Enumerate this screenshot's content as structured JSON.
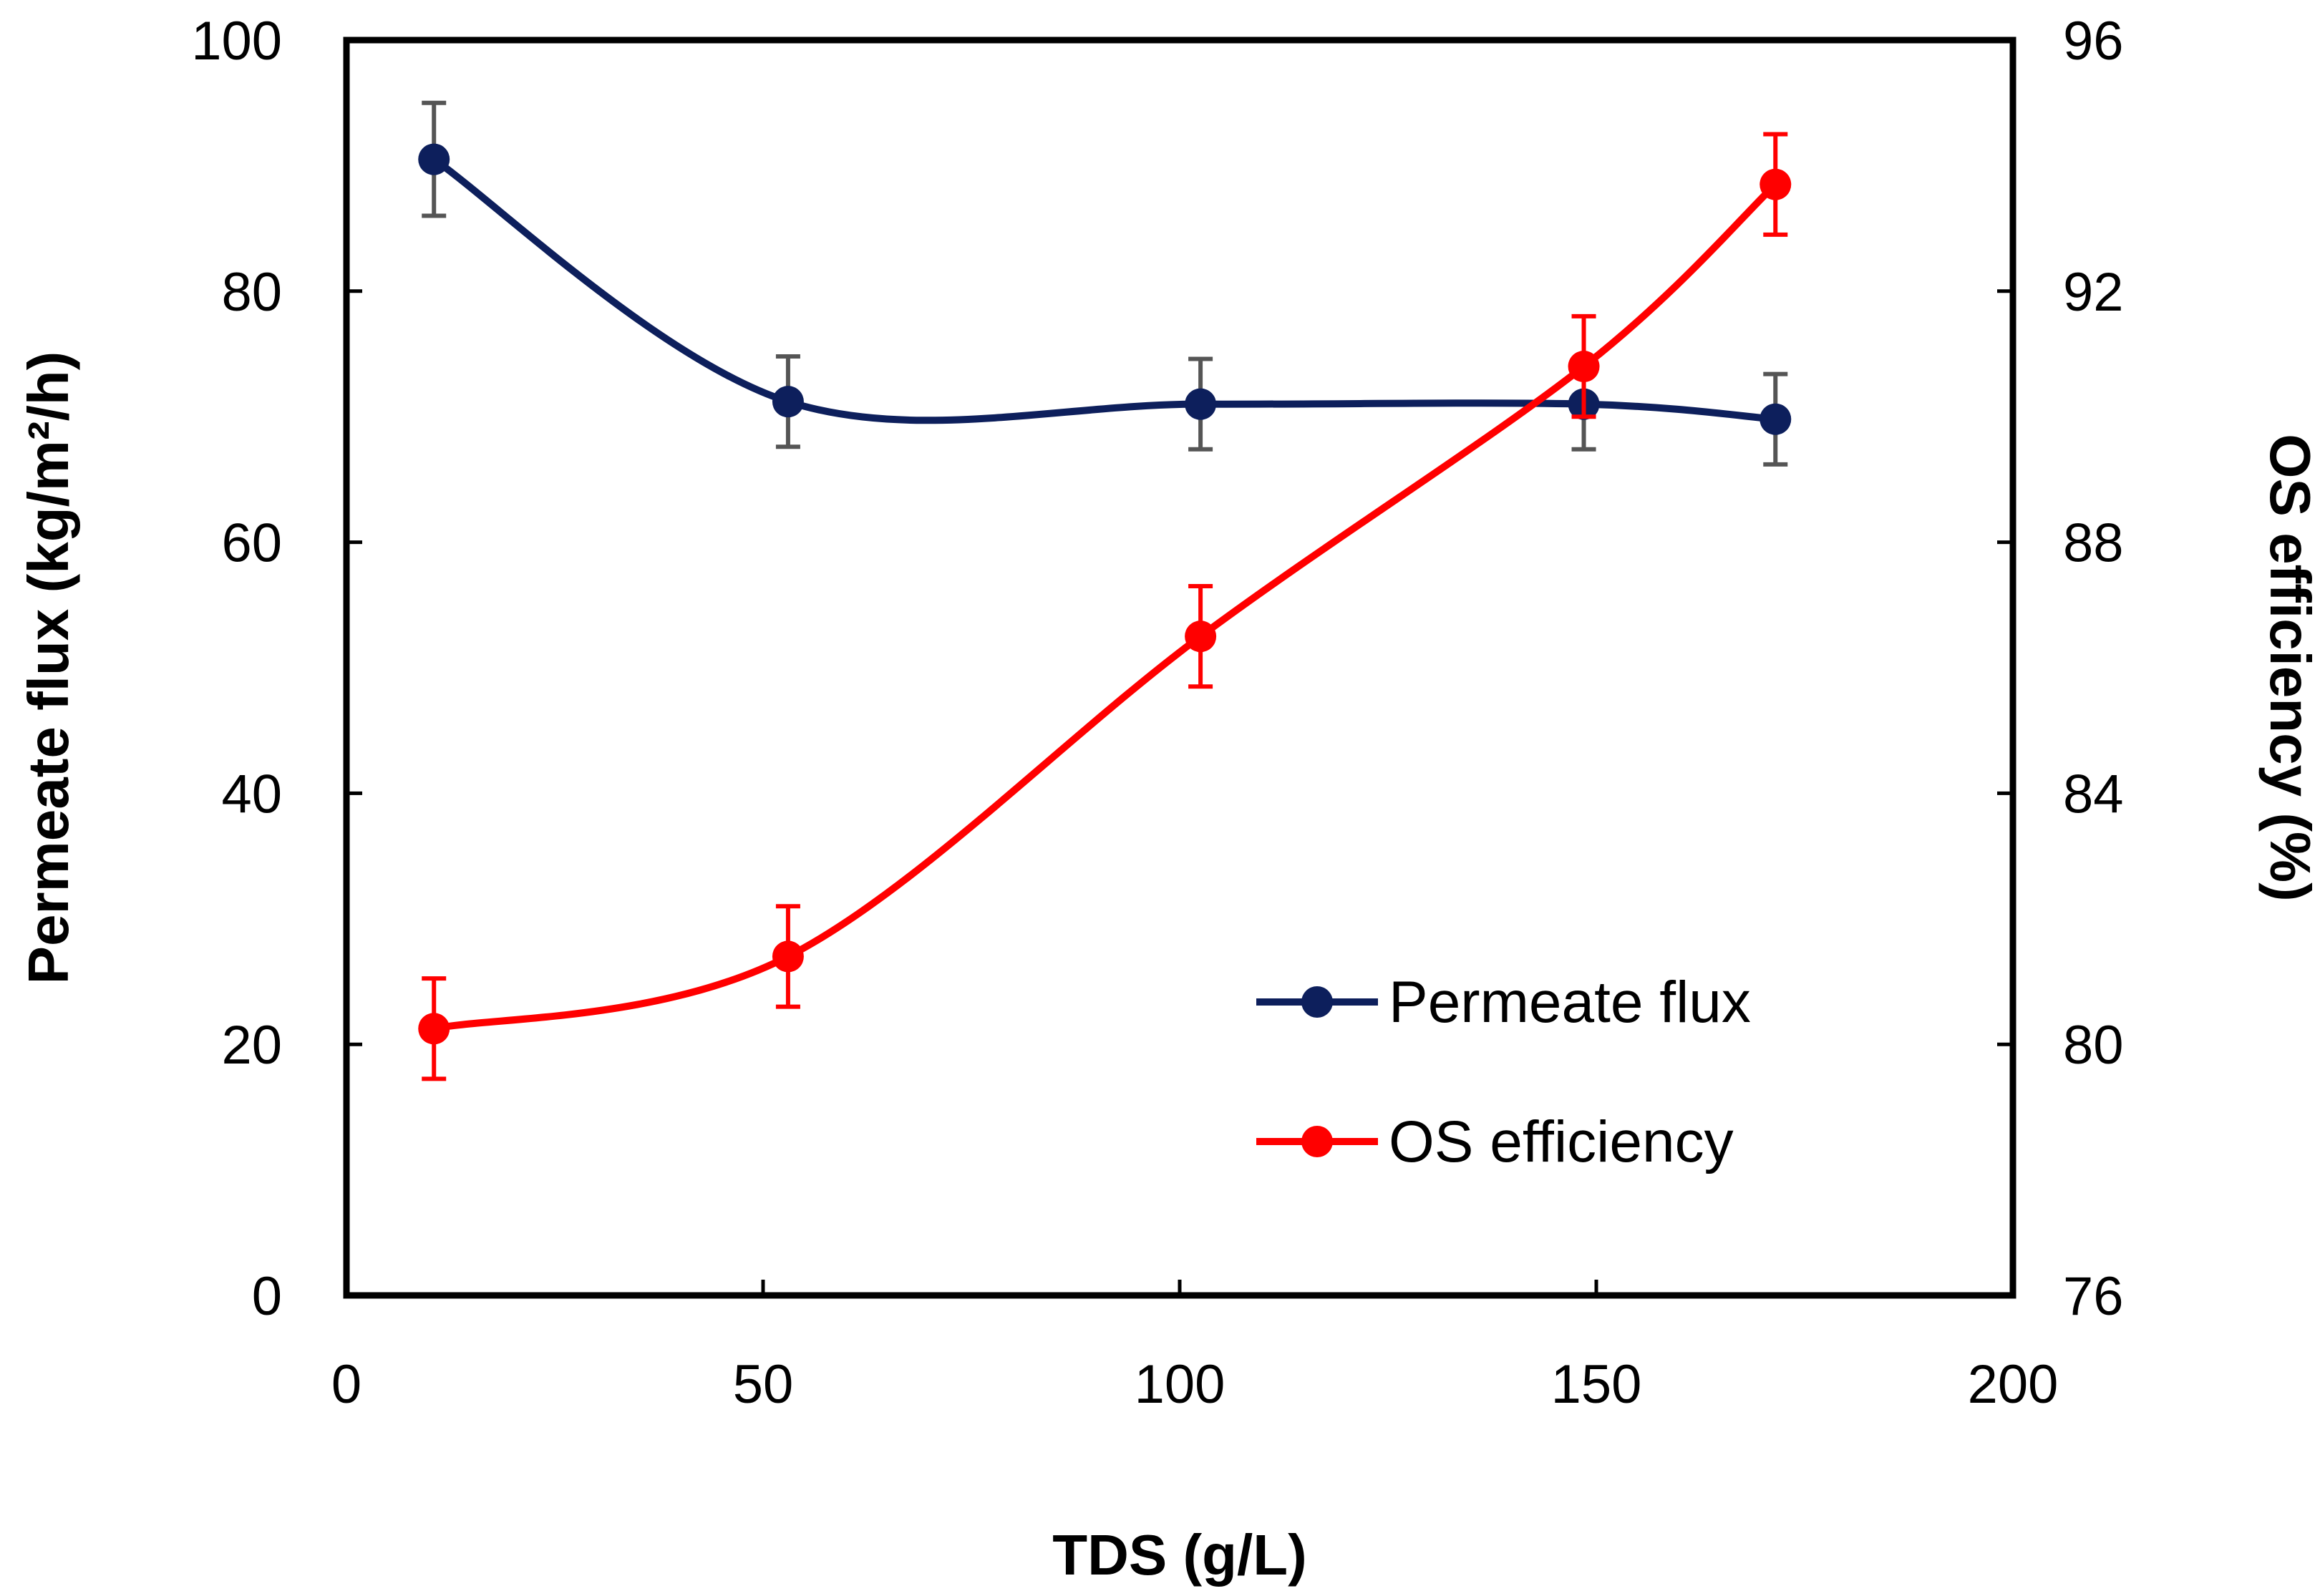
{
  "chart_data": {
    "type": "line",
    "title": "",
    "xlabel": "TDS (g/L)",
    "ylabel": "Permeate flux (kg/m²/h)",
    "y2label": "OS efficiency (%)",
    "xlim": [
      0,
      200
    ],
    "ylim": [
      0,
      100
    ],
    "y2lim": [
      76,
      96
    ],
    "xticks": [
      "0",
      "50",
      "100",
      "150",
      "200"
    ],
    "yticks": [
      "0",
      "20",
      "40",
      "60",
      "80",
      "100"
    ],
    "y2ticks": [
      "76",
      "80",
      "84",
      "88",
      "92",
      "96"
    ],
    "grid": false,
    "legend_position": "bottom-right",
    "series": [
      {
        "name": "Permeate flux",
        "axis": "left",
        "color": "#0d1f5c",
        "error_color": "#555555",
        "x": [
          10.5,
          53,
          102.5,
          148.5,
          171.5
        ],
        "y": [
          90.5,
          71.2,
          71.0,
          71.0,
          69.8
        ],
        "error": [
          4.5,
          3.6,
          3.6,
          3.6,
          3.6
        ]
      },
      {
        "name": "OS efficiency",
        "axis": "right",
        "color": "#ff0000",
        "error_color": "#ff0000",
        "x": [
          10.5,
          53,
          102.5,
          148.5,
          171.5
        ],
        "y": [
          80.25,
          81.4,
          86.5,
          90.8,
          93.7
        ],
        "error": [
          0.8,
          0.8,
          0.8,
          0.8,
          0.8
        ]
      }
    ]
  }
}
